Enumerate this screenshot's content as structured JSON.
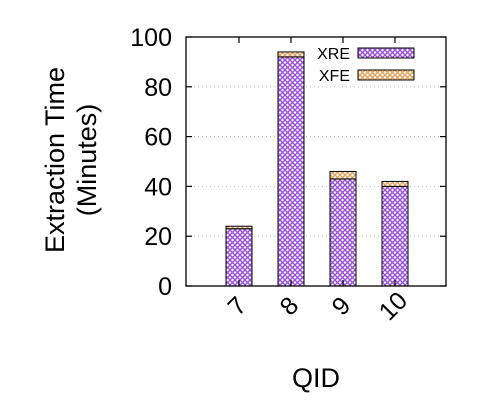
{
  "chart_data": {
    "type": "bar",
    "stacked": true,
    "categories": [
      "7",
      "8",
      "9",
      "10"
    ],
    "series": [
      {
        "name": "XRE",
        "values": [
          23,
          92,
          43,
          40
        ],
        "color": "#9a4fd6",
        "pattern": "crosshatch-purple"
      },
      {
        "name": "XFE",
        "values": [
          1,
          2,
          3,
          2
        ],
        "color": "#e3a55e",
        "pattern": "crosshatch-orange"
      }
    ],
    "xlabel": "QID",
    "ylabel_line1": "Extraction Time",
    "ylabel_line2": "(Minutes)",
    "ylim": [
      0,
      100
    ],
    "yticks": [
      0,
      20,
      40,
      60,
      80,
      100
    ],
    "grid": "horizontal dotted",
    "legend_position": "top-right"
  }
}
